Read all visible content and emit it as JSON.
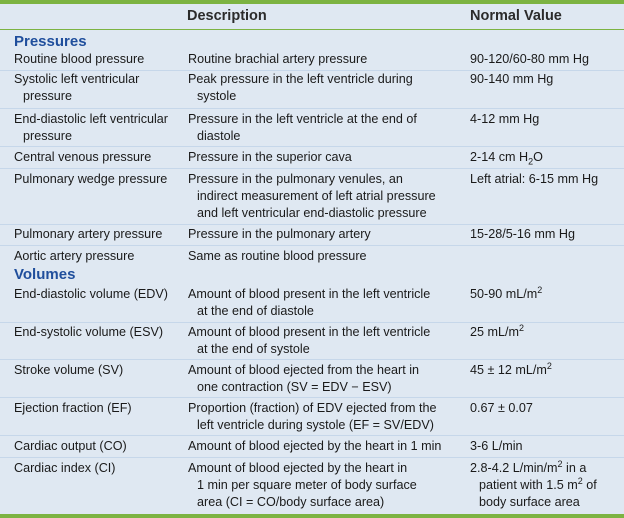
{
  "header": {
    "description": "Description",
    "normal_value": "Normal Value"
  },
  "sections": {
    "pressures": "Pressures",
    "volumes": "Volumes"
  },
  "rows": {
    "rbp": {
      "name": [
        "Routine blood pressure"
      ],
      "desc": [
        "Routine brachial artery pressure"
      ],
      "value": [
        "90-120/60-80 mm Hg"
      ]
    },
    "slvp": {
      "name": [
        "Systolic left ventricular",
        "pressure"
      ],
      "desc": [
        "Peak pressure in the left ventricle during",
        "systole"
      ],
      "value": [
        "90-140 mm Hg"
      ]
    },
    "edlvp": {
      "name": [
        "End-diastolic left ventricular",
        "pressure"
      ],
      "desc": [
        "Pressure in the left ventricle at the end of",
        "diastole"
      ],
      "value": [
        "4-12 mm Hg"
      ]
    },
    "cvp": {
      "name": [
        "Central venous pressure"
      ],
      "desc": [
        "Pressure in the superior cava"
      ],
      "value_pre": "2-14 cm H",
      "value_sub": "2",
      "value_post": "O"
    },
    "pwp": {
      "name": [
        "Pulmonary wedge pressure"
      ],
      "desc": [
        "Pressure in the pulmonary venules, an",
        "indirect measurement of left atrial pressure",
        "and left ventricular end-diastolic pressure"
      ],
      "value": [
        "Left atrial: 6-15 mm Hg"
      ]
    },
    "pap": {
      "name": [
        "Pulmonary artery pressure"
      ],
      "desc": [
        "Pressure in the pulmonary artery"
      ],
      "value": [
        "15-28/5-16 mm Hg"
      ]
    },
    "aap": {
      "name": [
        "Aortic artery pressure"
      ],
      "desc": [
        "Same as routine blood pressure"
      ],
      "value": [
        ""
      ]
    },
    "edv": {
      "name": [
        "End-diastolic volume (EDV)"
      ],
      "desc": [
        "Amount of blood present in the left ventricle",
        "at the end of diastole"
      ],
      "value_pre": "50-90 mL/m",
      "value_sup": "2"
    },
    "esv": {
      "name": [
        "End-systolic volume (ESV)"
      ],
      "desc": [
        "Amount of blood present in the left ventricle",
        "at the end of systole"
      ],
      "value_pre": "25 mL/m",
      "value_sup": "2"
    },
    "sv": {
      "name": [
        "Stroke volume (SV)"
      ],
      "desc": [
        "Amount of blood ejected from the heart in",
        "one contraction (SV = EDV − ESV)"
      ],
      "value_pre": "45 ± 12 mL/m",
      "value_sup": "2"
    },
    "ef": {
      "name": [
        "Ejection fraction (EF)"
      ],
      "desc": [
        "Proportion (fraction) of EDV ejected from the",
        "left ventricle during systole (EF = SV/EDV)"
      ],
      "value": [
        "0.67 ± 0.07"
      ]
    },
    "co": {
      "name": [
        "Cardiac output (CO)"
      ],
      "desc": [
        "Amount of blood ejected by the heart in 1 min"
      ],
      "value": [
        "3-6 L/min"
      ]
    },
    "ci": {
      "name": [
        "Cardiac index (CI)"
      ],
      "desc": [
        "Amount of blood ejected by the heart in",
        "1 min per square meter of body surface",
        "area (CI = CO/body surface area)"
      ],
      "value_l1_pre": "2.8-4.2 L/min/m",
      "value_l1_sup": "2",
      "value_l1_post": " in a",
      "value_l2_pre": "patient with 1.5 m",
      "value_l2_sup": "2",
      "value_l2_post": " of",
      "value_l3": "body surface area"
    }
  },
  "colors": {
    "background": "#dfe8f2",
    "accent_green": "#7cb342",
    "section_blue": "#1f4e9c",
    "row_separator": "#c6d7ea"
  }
}
